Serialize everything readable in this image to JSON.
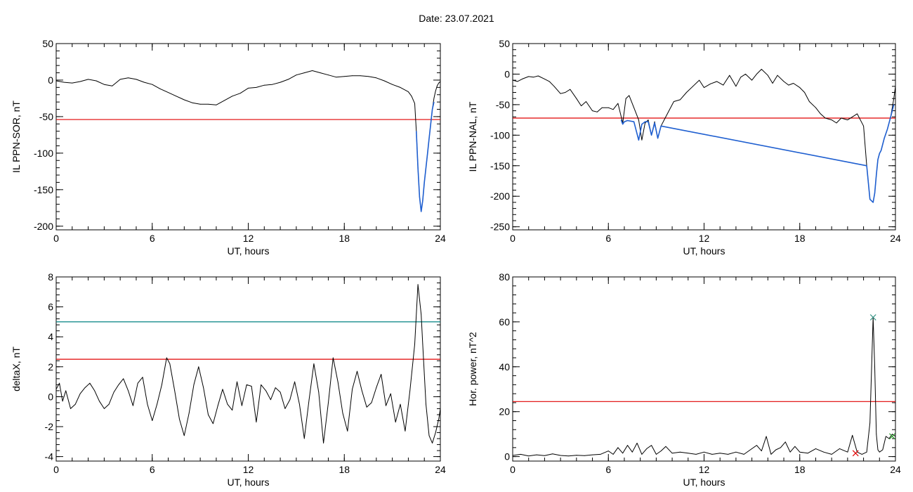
{
  "header": {
    "date_label": "Date:  23.07.2021"
  },
  "chart_data": [
    {
      "type": "line",
      "ylabel": "IL PPN-SOR, nT",
      "xlabel": "UT, hours",
      "xlim": [
        0,
        24
      ],
      "ylim": [
        -205,
        50
      ],
      "xticks": [
        0,
        6,
        12,
        18,
        24
      ],
      "yticks": [
        -200,
        -150,
        -100,
        -50,
        0,
        50
      ],
      "threshold_line": {
        "value": -54,
        "color": "#e00000"
      },
      "series": [
        {
          "color": "#000000",
          "x": [
            0,
            0.5,
            1,
            1.5,
            2,
            2.5,
            3,
            3.5,
            4,
            4.5,
            5,
            5.5,
            6,
            6.5,
            7,
            7.5,
            8,
            8.5,
            9,
            9.5,
            10,
            10.5,
            11,
            11.5,
            12,
            12.5,
            13,
            13.5,
            14,
            14.5,
            15,
            15.5,
            16,
            16.5,
            17,
            17.5,
            18,
            18.5,
            19,
            19.5,
            20,
            20.5,
            21,
            21.5,
            22,
            22.2,
            22.4,
            22.5,
            22.6,
            22.7,
            22.8,
            22.9,
            23,
            23.1,
            23.2,
            23.3,
            23.4,
            23.5,
            23.6,
            23.7,
            23.8,
            23.9,
            24
          ],
          "y": [
            -1,
            -3,
            -4,
            -2,
            1,
            -1,
            -6,
            -8,
            1,
            3,
            1,
            -3,
            -6,
            -12,
            -17,
            -22,
            -27,
            -31,
            -33,
            -33,
            -34,
            -28,
            -22,
            -18,
            -11,
            -10,
            -7,
            -6,
            -3,
            1,
            7,
            10,
            13,
            10,
            7,
            4,
            5,
            6,
            6,
            5,
            3,
            -1,
            -6,
            -10,
            -16,
            -22,
            -32,
            -70,
            -120,
            -160,
            -180,
            -165,
            -140,
            -120,
            -100,
            -80,
            -60,
            -40,
            -25,
            -15,
            -8,
            -4,
            -2
          ]
        },
        {
          "color": "#1f5fd0",
          "x": [
            22.5,
            22.6,
            22.7,
            22.8,
            22.9,
            23,
            23.1,
            23.2,
            23.3,
            23.4,
            23.5,
            23.6
          ],
          "y": [
            -70,
            -120,
            -160,
            -180,
            -165,
            -140,
            -120,
            -100,
            -80,
            -60,
            -40,
            -30
          ]
        }
      ]
    },
    {
      "type": "line",
      "ylabel": "IL PPN-NAL, nT",
      "xlabel": "UT, hours",
      "xlim": [
        0,
        24
      ],
      "ylim": [
        -255,
        50
      ],
      "xticks": [
        0,
        6,
        12,
        18,
        24
      ],
      "yticks": [
        -250,
        -200,
        -150,
        -100,
        -50,
        0,
        50
      ],
      "threshold_line": {
        "value": -72,
        "color": "#e00000"
      },
      "series": [
        {
          "color": "#000000",
          "x": [
            0,
            0.3,
            0.6,
            1,
            1.3,
            1.6,
            2,
            2.3,
            2.6,
            3,
            3.3,
            3.6,
            4,
            4.3,
            4.6,
            5,
            5.3,
            5.6,
            6,
            6.3,
            6.6,
            6.9,
            7.1,
            7.3,
            7.6,
            7.9,
            8.1,
            8.3,
            8.5,
            8.7,
            8.9,
            9.1,
            9.3,
            9.5,
            9.8,
            10.1,
            10.5,
            10.9,
            11.3,
            11.7,
            12,
            12.4,
            12.8,
            13.2,
            13.6,
            14,
            14.3,
            14.6,
            15,
            15.3,
            15.6,
            16,
            16.3,
            16.6,
            17,
            17.3,
            17.6,
            18,
            18.3,
            18.6,
            19,
            19.3,
            19.6,
            20,
            20.3,
            20.6,
            21,
            21.3,
            21.6,
            22,
            22.2,
            22.4,
            22.6,
            22.7,
            22.8,
            22.9,
            23,
            23.1,
            23.3,
            23.5,
            23.7,
            23.9,
            24
          ],
          "y": [
            -10,
            -12,
            -8,
            -4,
            -5,
            -3,
            -8,
            -12,
            -20,
            -32,
            -30,
            -25,
            -40,
            -52,
            -45,
            -60,
            -62,
            -55,
            -55,
            -58,
            -48,
            -80,
            -40,
            -35,
            -55,
            -75,
            -108,
            -80,
            -75,
            -100,
            -78,
            -105,
            -85,
            -75,
            -60,
            -45,
            -42,
            -30,
            -20,
            -10,
            -22,
            -16,
            -12,
            -18,
            -2,
            -20,
            -5,
            0,
            -10,
            0,
            8,
            -2,
            -15,
            -2,
            -12,
            -18,
            -15,
            -22,
            -30,
            -45,
            -55,
            -65,
            -72,
            -75,
            -80,
            -72,
            -75,
            -70,
            -65,
            -85,
            -150,
            -205,
            -210,
            -195,
            -165,
            -140,
            -130,
            -125,
            -105,
            -90,
            -70,
            -40,
            -20
          ]
        },
        {
          "color": "#1f5fd0",
          "x": [
            6.8,
            6.9,
            7.0,
            7.2,
            7.6,
            7.9,
            8.1,
            8.3,
            8.5,
            8.7,
            8.9,
            9.1,
            9.3,
            22.2,
            22.4,
            22.6,
            22.7,
            22.8,
            22.9,
            23,
            23.1,
            23.3,
            23.5,
            23.7,
            23.9
          ],
          "y": [
            -75,
            -82,
            -78,
            -76,
            -78,
            -108,
            -82,
            -78,
            -78,
            -100,
            -80,
            -105,
            -85,
            -150,
            -205,
            -210,
            -195,
            -165,
            -140,
            -130,
            -125,
            -105,
            -90,
            -70,
            -50
          ]
        }
      ]
    },
    {
      "type": "line",
      "ylabel": "deltaX, nT",
      "xlabel": "UT, hours",
      "xlim": [
        0,
        24
      ],
      "ylim": [
        -4.3,
        8
      ],
      "xticks": [
        0,
        6,
        12,
        18,
        24
      ],
      "yticks": [
        -4,
        -2,
        0,
        2,
        4,
        6,
        8
      ],
      "threshold_lines": [
        {
          "value": 5,
          "color": "#008080"
        },
        {
          "value": 2.5,
          "color": "#e00000"
        }
      ],
      "series": [
        {
          "color": "#000000",
          "x": [
            0,
            0.2,
            0.4,
            0.6,
            0.9,
            1.2,
            1.5,
            1.8,
            2.1,
            2.4,
            2.7,
            3,
            3.3,
            3.6,
            3.9,
            4.2,
            4.5,
            4.8,
            5.1,
            5.4,
            5.7,
            6,
            6.3,
            6.6,
            6.9,
            7.1,
            7.4,
            7.7,
            8,
            8.3,
            8.6,
            8.9,
            9.2,
            9.5,
            9.8,
            10.1,
            10.4,
            10.7,
            11,
            11.3,
            11.6,
            11.9,
            12.2,
            12.5,
            12.8,
            13.1,
            13.4,
            13.7,
            14,
            14.3,
            14.6,
            14.9,
            15.2,
            15.5,
            15.8,
            16.1,
            16.4,
            16.7,
            17,
            17.3,
            17.6,
            17.9,
            18.2,
            18.5,
            18.8,
            19.1,
            19.4,
            19.7,
            20,
            20.3,
            20.6,
            20.9,
            21.2,
            21.5,
            21.8,
            22.1,
            22.4,
            22.6,
            22.8,
            22.9,
            23,
            23.1,
            23.3,
            23.5,
            23.7,
            23.9,
            24
          ],
          "y": [
            0.5,
            0.9,
            -0.3,
            0.4,
            -0.8,
            -0.5,
            0.2,
            0.6,
            0.9,
            0.4,
            -0.3,
            -0.8,
            -0.5,
            0.3,
            0.8,
            1.2,
            0.4,
            -0.6,
            0.9,
            1.3,
            -0.5,
            -1.6,
            -0.5,
            0.8,
            2.6,
            2.2,
            0.4,
            -1.5,
            -2.6,
            -1.1,
            0.8,
            2.0,
            0.6,
            -1.2,
            -1.8,
            -0.6,
            0.5,
            -0.5,
            -0.9,
            1.0,
            -0.6,
            0.8,
            0.7,
            -1.7,
            0.8,
            0.4,
            -0.2,
            0.6,
            0.3,
            -0.8,
            -0.2,
            1.0,
            -0.5,
            -2.8,
            -0.2,
            2.2,
            0.3,
            -3.1,
            -0.4,
            2.6,
            1.0,
            -1.1,
            -2.3,
            0.5,
            1.7,
            0.4,
            -0.7,
            -0.4,
            0.6,
            1.5,
            -0.6,
            0.2,
            -1.7,
            -0.5,
            -2.3,
            0.4,
            3.5,
            7.5,
            5.5,
            3.5,
            1.5,
            -0.5,
            -2.6,
            -3.1,
            -2.4,
            -1.5,
            -0.8
          ]
        }
      ]
    },
    {
      "type": "line",
      "ylabel": "Hor. power, nT^2",
      "xlabel": "UT, hours",
      "xlim": [
        0,
        24
      ],
      "ylim": [
        -2,
        80
      ],
      "xticks": [
        0,
        6,
        12,
        18,
        24
      ],
      "yticks": [
        0,
        20,
        40,
        60,
        80
      ],
      "threshold_line": {
        "value": 24.5,
        "color": "#e00000"
      },
      "series": [
        {
          "color": "#000000",
          "x": [
            0,
            0.5,
            1,
            1.5,
            2,
            2.5,
            3,
            3.5,
            4,
            4.5,
            5,
            5.5,
            6,
            6.3,
            6.6,
            6.9,
            7.2,
            7.5,
            7.8,
            8.1,
            8.4,
            8.7,
            9,
            9.3,
            9.6,
            10,
            10.5,
            11,
            11.5,
            12,
            12.5,
            13,
            13.5,
            14,
            14.5,
            15,
            15.3,
            15.6,
            15.9,
            16.2,
            16.5,
            16.8,
            17.1,
            17.4,
            17.7,
            18,
            18.5,
            19,
            19.5,
            20,
            20.5,
            21,
            21.3,
            21.6,
            21.9,
            22.2,
            22.4,
            22.6,
            22.7,
            22.8,
            22.9,
            23,
            23.2,
            23.4,
            23.6,
            23.8,
            24
          ],
          "y": [
            0.5,
            1,
            0.3,
            0.8,
            0.4,
            1.2,
            0.5,
            0.3,
            0.6,
            0.4,
            0.8,
            1,
            2.5,
            1,
            4,
            1.5,
            5,
            2,
            6,
            1,
            3.5,
            5,
            1,
            2.5,
            4.5,
            1.5,
            2,
            1.5,
            1,
            2,
            1,
            1.5,
            1,
            2,
            1,
            3.5,
            5,
            2.5,
            9,
            1,
            3,
            4,
            6.5,
            2,
            4.5,
            2,
            1.5,
            3.5,
            2,
            1,
            3.5,
            2,
            9.5,
            2,
            1,
            2,
            15,
            62,
            40,
            10,
            3,
            2,
            3,
            9,
            8,
            10,
            9
          ]
        }
      ],
      "markers": [
        {
          "x": 22.6,
          "y": 62,
          "symbol": "x",
          "color": "#2f8f7f"
        },
        {
          "x": 21.5,
          "y": 1.5,
          "symbol": "x",
          "color": "#e00000"
        },
        {
          "x": 23.8,
          "y": 9,
          "symbol": "x",
          "color": "#2fa02f"
        }
      ]
    }
  ]
}
